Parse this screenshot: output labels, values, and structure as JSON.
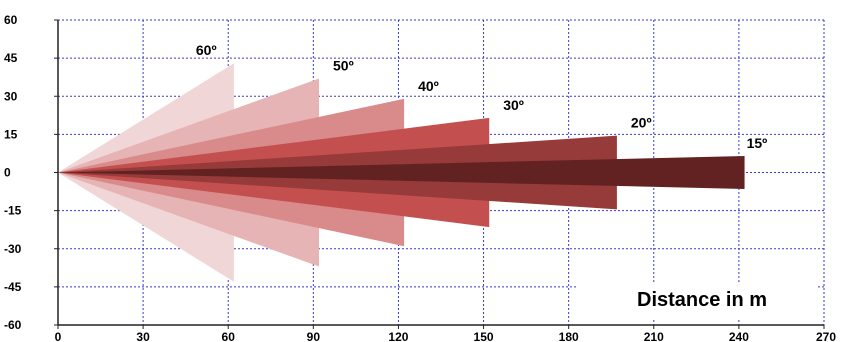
{
  "chart_data": {
    "type": "area",
    "xlabel": "Distance in m",
    "ylabel": "",
    "title": "",
    "xlim": [
      0,
      270
    ],
    "ylim": [
      -60,
      60
    ],
    "xticks": [
      0,
      30,
      60,
      90,
      120,
      150,
      180,
      210,
      240,
      270
    ],
    "yticks": [
      60,
      45,
      30,
      15,
      0,
      -15,
      -30,
      -45,
      -60
    ],
    "grid": true,
    "origin": [
      0,
      0
    ],
    "series": [
      {
        "name": "60º",
        "range": 62,
        "half_width": 43,
        "color": "#f0d6d6"
      },
      {
        "name": "50º",
        "range": 92,
        "half_width": 37,
        "color": "#e6b4b4"
      },
      {
        "name": "40º",
        "range": 122,
        "half_width": 29,
        "color": "#d98a8a"
      },
      {
        "name": "30º",
        "range": 152,
        "half_width": 21.5,
        "color": "#c44f4f"
      },
      {
        "name": "20º",
        "range": 197,
        "half_width": 14.5,
        "color": "#973a3a"
      },
      {
        "name": "15º",
        "range": 242,
        "half_width": 6.5,
        "color": "#632222"
      }
    ]
  }
}
